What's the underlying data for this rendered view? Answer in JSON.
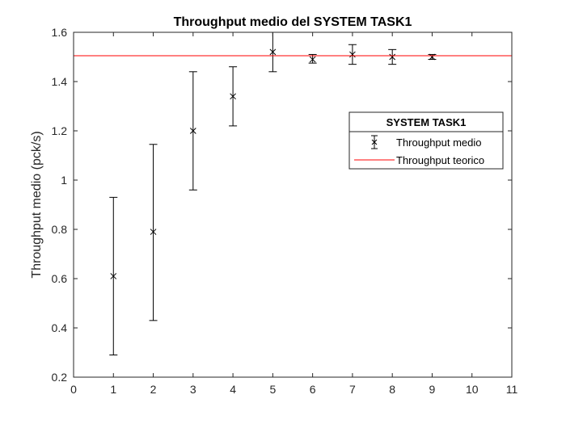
{
  "chart_data": {
    "type": "scatter",
    "title": "Throughput medio del SYSTEM TASK1",
    "xlabel": "",
    "ylabel": "Throughput medio (pck/s)",
    "xlim": [
      0,
      11
    ],
    "ylim": [
      0.2,
      1.6
    ],
    "xticks": [
      0,
      1,
      2,
      3,
      4,
      5,
      6,
      7,
      8,
      9,
      10,
      11
    ],
    "yticks": [
      0.2,
      0.4,
      0.6,
      0.8,
      1,
      1.2,
      1.4,
      1.6
    ],
    "grid": false,
    "legend": {
      "title": "SYSTEM TASK1",
      "placement": "right",
      "entries": [
        "Throughput medio",
        "Throughput teorico"
      ]
    },
    "series": [
      {
        "name": "Throughput medio",
        "kind": "errorbar",
        "color": "#000000",
        "marker": "x",
        "x": [
          1,
          2,
          3,
          4,
          5,
          6,
          7,
          8,
          9
        ],
        "y": [
          0.61,
          0.79,
          1.2,
          1.34,
          1.52,
          1.49,
          1.51,
          1.5,
          1.5
        ],
        "lower": [
          0.29,
          0.43,
          0.96,
          1.22,
          1.44,
          1.475,
          1.47,
          1.47,
          1.49
        ],
        "upper": [
          0.93,
          1.145,
          1.44,
          1.46,
          1.6,
          1.51,
          1.55,
          1.53,
          1.51
        ]
      },
      {
        "name": "Throughput teorico",
        "kind": "hline",
        "color": "#ff0000",
        "y": 1.505
      }
    ]
  }
}
